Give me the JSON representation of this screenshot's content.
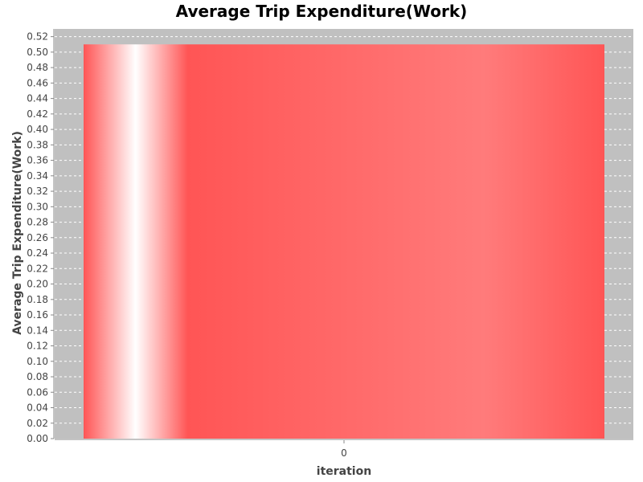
{
  "chart_data": {
    "type": "bar",
    "title": "Average Trip Expenditure(Work)",
    "xlabel": "iteration",
    "ylabel": "Average Trip Expenditure(Work)",
    "categories": [
      "0"
    ],
    "values": [
      0.51
    ],
    "ylim": [
      0,
      0.53
    ],
    "yticks": [
      0.0,
      0.02,
      0.04,
      0.06,
      0.08,
      0.1,
      0.12,
      0.14,
      0.16,
      0.18,
      0.2,
      0.22,
      0.24,
      0.26,
      0.28,
      0.3,
      0.32,
      0.34,
      0.36,
      0.38,
      0.4,
      0.42,
      0.44,
      0.46,
      0.48,
      0.5,
      0.52
    ],
    "grid": true,
    "legend": "none",
    "colors": {
      "plot_background": "#c0c0c0",
      "bar": "#ff5555",
      "bar_highlight": "#ffffff",
      "gridline": "#ffffff"
    }
  }
}
